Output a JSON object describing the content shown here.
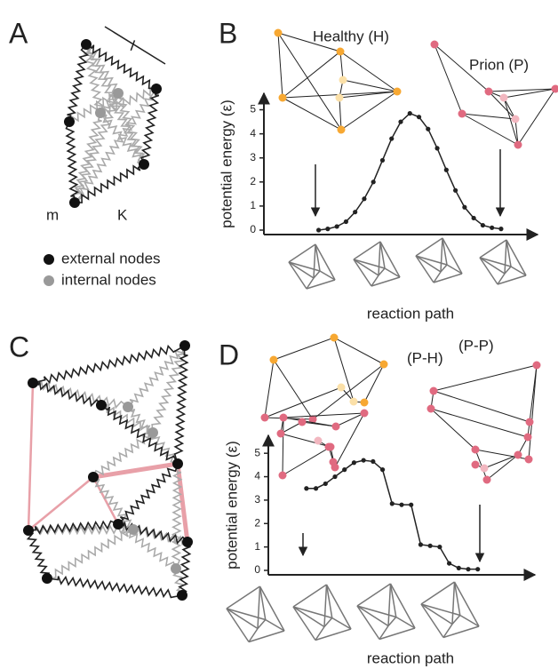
{
  "panels": {
    "A": {
      "label": "A",
      "mass": "m",
      "stiffness": "K",
      "length": "l",
      "legend": [
        "external nodes",
        "internal nodes"
      ]
    },
    "C": {
      "label": "C"
    }
  },
  "chart_data": [
    {
      "type": "line",
      "panel": "B",
      "annotations": [
        "Healthy (H)",
        "Prion (P)"
      ],
      "xlabel": "reaction path",
      "ylabel": "potential energy (ε)",
      "x": [
        0,
        1,
        2,
        3,
        4,
        5,
        6,
        7,
        8,
        9,
        10,
        11,
        12,
        13,
        14,
        15,
        16,
        17,
        18,
        19,
        20
      ],
      "values": [
        0.0,
        0.05,
        0.15,
        0.35,
        0.75,
        1.3,
        2.0,
        2.9,
        3.8,
        4.5,
        4.85,
        4.7,
        4.2,
        3.4,
        2.5,
        1.65,
        0.95,
        0.5,
        0.2,
        0.1,
        0.05
      ],
      "color": "#222222",
      "xlim": [
        -6,
        24
      ],
      "ylim": [
        0,
        5.5
      ],
      "yticks": [
        0,
        1,
        2,
        3,
        4,
        5
      ]
    },
    {
      "type": "line",
      "panel": "D",
      "annotations": [
        "(P-H)",
        "(P-P)"
      ],
      "xlabel": "reaction path",
      "ylabel": "potential energy (ε)",
      "x": [
        0,
        1,
        2,
        3,
        4,
        5,
        6,
        7,
        8,
        9,
        10,
        11,
        12,
        13,
        14,
        15,
        16,
        17,
        18
      ],
      "values": [
        3.5,
        3.5,
        3.7,
        4.0,
        4.3,
        4.6,
        4.7,
        4.65,
        4.3,
        2.85,
        2.8,
        2.8,
        1.1,
        1.05,
        1.0,
        0.3,
        0.1,
        0.05,
        0.05
      ],
      "color": "#222222",
      "xlim": [
        -4,
        24
      ],
      "ylim": [
        0,
        5.5
      ],
      "yticks": [
        0,
        1,
        2,
        3,
        4,
        5
      ]
    }
  ]
}
